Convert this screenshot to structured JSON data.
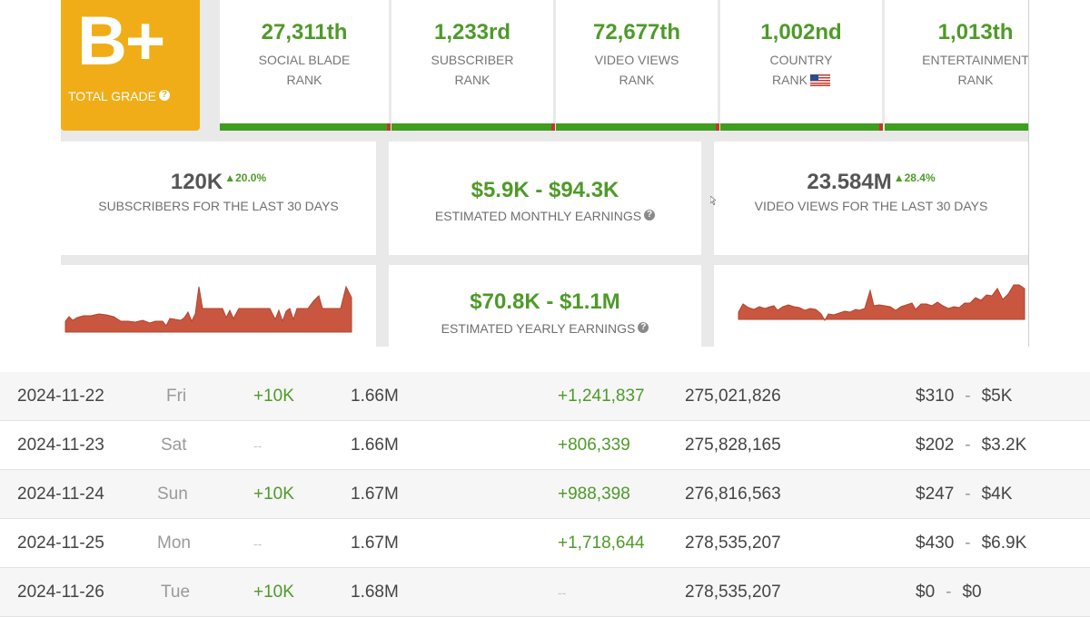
{
  "grade": {
    "value": "B+",
    "label": "TOTAL GRADE",
    "help": "?"
  },
  "ranks": [
    {
      "value": "27,311th",
      "line1": "SOCIAL BLADE",
      "line2": "RANK"
    },
    {
      "value": "1,233rd",
      "line1": "SUBSCRIBER",
      "line2": "RANK"
    },
    {
      "value": "72,677th",
      "line1": "VIDEO VIEWS",
      "line2": "RANK"
    },
    {
      "value": "1,002nd",
      "line1": "COUNTRY",
      "line2": "RANK"
    },
    {
      "value": "1,013th",
      "line1": "ENTERTAINMENT",
      "line2": "RANK"
    }
  ],
  "stats": {
    "subs": {
      "value": "120K",
      "change": "▲20.0%",
      "label": "SUBSCRIBERS FOR THE LAST 30 DAYS"
    },
    "monthly": {
      "value": "$5.9K  -  $94.3K",
      "label": "ESTIMATED MONTHLY EARNINGS",
      "help": "?"
    },
    "views": {
      "value": "23.584M",
      "change": "▲28.4%",
      "label": "VIDEO VIEWS FOR THE LAST 30 DAYS"
    },
    "yearly": {
      "value": "$70.8K  -  $1.1M",
      "label": "ESTIMATED YEARLY EARNINGS",
      "help": "?"
    }
  },
  "colors": {
    "grade_bg": "#f1ad17",
    "green": "#4e9a28",
    "bar_green": "#3f9e1e",
    "bar_red": "#c0392b",
    "spark_fill": "#c9573f"
  },
  "table": {
    "rows": [
      {
        "date": "2024-11-22",
        "day": "Fri",
        "subs_change": "+10K",
        "subs_total": "1.66M",
        "views_change": "+1,241,837",
        "views_total": "275,021,826",
        "earn_low": "$310",
        "earn_sep": "-",
        "earn_high": "$5K"
      },
      {
        "date": "2024-11-23",
        "day": "Sat",
        "subs_change": "--",
        "subs_total": "1.66M",
        "views_change": "+806,339",
        "views_total": "275,828,165",
        "earn_low": "$202",
        "earn_sep": "-",
        "earn_high": "$3.2K"
      },
      {
        "date": "2024-11-24",
        "day": "Sun",
        "subs_change": "+10K",
        "subs_total": "1.67M",
        "views_change": "+988,398",
        "views_total": "276,816,563",
        "earn_low": "$247",
        "earn_sep": "-",
        "earn_high": "$4K"
      },
      {
        "date": "2024-11-25",
        "day": "Mon",
        "subs_change": "--",
        "subs_total": "1.67M",
        "views_change": "+1,718,644",
        "views_total": "278,535,207",
        "earn_low": "$430",
        "earn_sep": "-",
        "earn_high": "$6.9K"
      },
      {
        "date": "2024-11-26",
        "day": "Tue",
        "subs_change": "+10K",
        "subs_total": "1.68M",
        "views_change": "--",
        "views_total": "278,535,207",
        "earn_low": "$0",
        "earn_sep": "-",
        "earn_high": "$0"
      }
    ]
  }
}
